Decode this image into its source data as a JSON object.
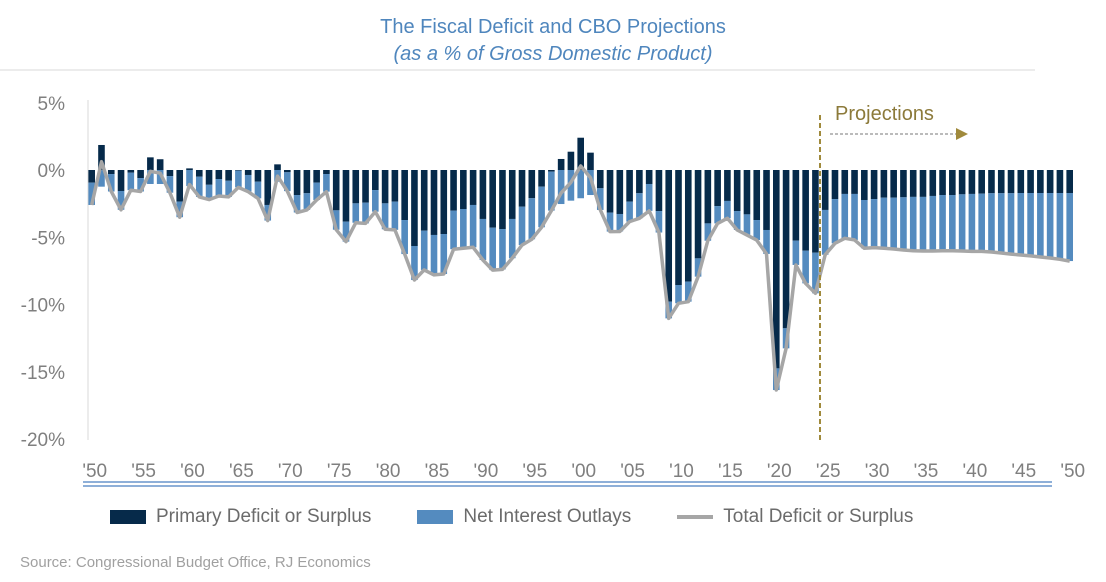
{
  "title": "The Fiscal Deficit and CBO Projections",
  "subtitle": "(as a % of Gross Domestic Product)",
  "source": "Source: Congressional Budget Office, RJ Economics",
  "projection_label": "Projections",
  "colors": {
    "primary": "#062a4a",
    "interest": "#548bbf",
    "total": "#a6a6a6",
    "projection_line": "#a08a3c",
    "title": "#4f86bd"
  },
  "chart_data": {
    "type": "bar",
    "stacked": true,
    "title": "The Fiscal Deficit and CBO Projections",
    "subtitle": "(as a % of Gross Domestic Product)",
    "x_start": 1950,
    "x_end": 2050,
    "projection_start": 2025,
    "ylim": [
      -20,
      5
    ],
    "y_ticks": [
      "5%",
      "0%",
      "-5%",
      "-10%",
      "-15%",
      "-20%"
    ],
    "y_tick_values": [
      5,
      0,
      -5,
      -10,
      -15,
      -20
    ],
    "x_ticks": [
      "'50",
      "'55",
      "'60",
      "'65",
      "'70",
      "'75",
      "'80",
      "'85",
      "'90",
      "'95",
      "'00",
      "'05",
      "'10",
      "'15",
      "'20",
      "'25",
      "'30",
      "'35",
      "'40",
      "'45",
      "'50"
    ],
    "legend_position": "bottom",
    "grid": false,
    "series": [
      {
        "name": "Primary Deficit or Surplus",
        "type": "bar",
        "values": [
          -0.94,
          1.86,
          -0.3,
          -1.56,
          -0.2,
          -0.6,
          0.94,
          0.8,
          -0.45,
          -2.35,
          0.12,
          -0.5,
          -1.1,
          -0.67,
          -0.8,
          -0.05,
          -0.37,
          -0.87,
          -2.6,
          0.42,
          -0.17,
          -1.86,
          -1.73,
          -0.94,
          -0.3,
          -3.0,
          -3.84,
          -2.48,
          -2.43,
          -1.49,
          -2.48,
          -2.35,
          -3.72,
          -5.65,
          -4.51,
          -4.83,
          -4.76,
          -3.02,
          -2.9,
          -2.6,
          -3.64,
          -4.29,
          -4.39,
          -3.64,
          -2.73,
          -2.1,
          -1.24,
          -0.12,
          0.82,
          1.36,
          2.4,
          1.29,
          -1.36,
          -3.17,
          -3.27,
          -2.35,
          -1.73,
          -1.04,
          -3.05,
          -9.79,
          -8.55,
          -8.3,
          -6.57,
          -3.97,
          -2.68,
          -2.3,
          -3.05,
          -3.3,
          -3.72,
          -4.46,
          -14.75,
          -11.77,
          -5.25,
          -6.0,
          -6.15,
          -2.97,
          -2.16,
          -1.78,
          -1.78,
          -2.23,
          -2.16,
          -2.06,
          -2.06,
          -2.03,
          -2.0,
          -2.0,
          -1.93,
          -1.86,
          -1.86,
          -1.81,
          -1.78,
          -1.76,
          -1.73,
          -1.73,
          -1.73,
          -1.71,
          -1.71,
          -1.71,
          -1.71,
          -1.71,
          -1.71
        ]
      },
      {
        "name": "Net Interest Outlays",
        "type": "bar",
        "values": [
          -1.66,
          -1.24,
          -1.3,
          -1.4,
          -1.3,
          -1.0,
          -1.04,
          -1.04,
          -1.24,
          -1.16,
          -1.2,
          -1.5,
          -1.1,
          -1.26,
          -1.2,
          -1.24,
          -1.24,
          -1.24,
          -1.16,
          -0.87,
          -1.4,
          -1.3,
          -1.24,
          -1.29,
          -1.31,
          -1.44,
          -1.49,
          -1.44,
          -1.54,
          -1.61,
          -1.93,
          -2.1,
          -2.53,
          -2.53,
          -2.92,
          -2.97,
          -2.97,
          -2.87,
          -2.92,
          -3.15,
          -3.05,
          -3.15,
          -3.0,
          -2.92,
          -2.85,
          -3.05,
          -3.02,
          -2.9,
          -2.53,
          -2.28,
          -2.1,
          -1.86,
          -1.61,
          -1.41,
          -1.3,
          -1.49,
          -1.86,
          -2.0,
          -1.6,
          -1.24,
          -1.36,
          -1.49,
          -1.36,
          -1.29,
          -1.29,
          -1.29,
          -1.41,
          -1.54,
          -1.49,
          -1.78,
          -1.61,
          -1.49,
          -1.81,
          -2.43,
          -3.02,
          -3.33,
          -3.29,
          -3.3,
          -3.42,
          -3.59,
          -3.61,
          -3.76,
          -3.81,
          -3.92,
          -4.0,
          -4.02,
          -4.09,
          -4.14,
          -4.14,
          -4.21,
          -4.27,
          -4.29,
          -4.37,
          -4.44,
          -4.52,
          -4.61,
          -4.68,
          -4.76,
          -4.83,
          -4.93,
          -5.06
        ]
      },
      {
        "name": "Total Deficit or Surplus",
        "type": "line",
        "values": [
          -2.6,
          0.62,
          -1.6,
          -2.96,
          -1.5,
          -1.6,
          -0.1,
          -0.24,
          -1.69,
          -3.51,
          -1.08,
          -2.0,
          -2.2,
          -1.93,
          -2.0,
          -1.29,
          -1.61,
          -2.11,
          -3.76,
          -0.45,
          -1.57,
          -3.16,
          -2.97,
          -2.23,
          -1.61,
          -4.44,
          -5.33,
          -3.92,
          -3.97,
          -3.1,
          -4.41,
          -4.45,
          -6.25,
          -8.18,
          -7.43,
          -7.8,
          -7.73,
          -5.89,
          -5.82,
          -5.75,
          -6.69,
          -7.44,
          -7.39,
          -6.56,
          -5.58,
          -5.15,
          -4.26,
          -3.02,
          -1.71,
          -0.92,
          0.3,
          -0.57,
          -2.97,
          -4.58,
          -4.57,
          -3.84,
          -3.59,
          -3.04,
          -4.65,
          -11.03,
          -9.91,
          -9.79,
          -7.93,
          -5.26,
          -3.97,
          -3.59,
          -4.46,
          -4.84,
          -5.21,
          -6.24,
          -16.36,
          -13.26,
          -7.06,
          -8.43,
          -9.17,
          -6.3,
          -5.45,
          -5.08,
          -5.2,
          -5.82,
          -5.77,
          -5.82,
          -5.87,
          -5.95,
          -6.0,
          -6.02,
          -6.02,
          -6.0,
          -6.0,
          -6.02,
          -6.05,
          -6.05,
          -6.1,
          -6.17,
          -6.25,
          -6.32,
          -6.39,
          -6.47,
          -6.54,
          -6.64,
          -6.77
        ]
      }
    ]
  }
}
